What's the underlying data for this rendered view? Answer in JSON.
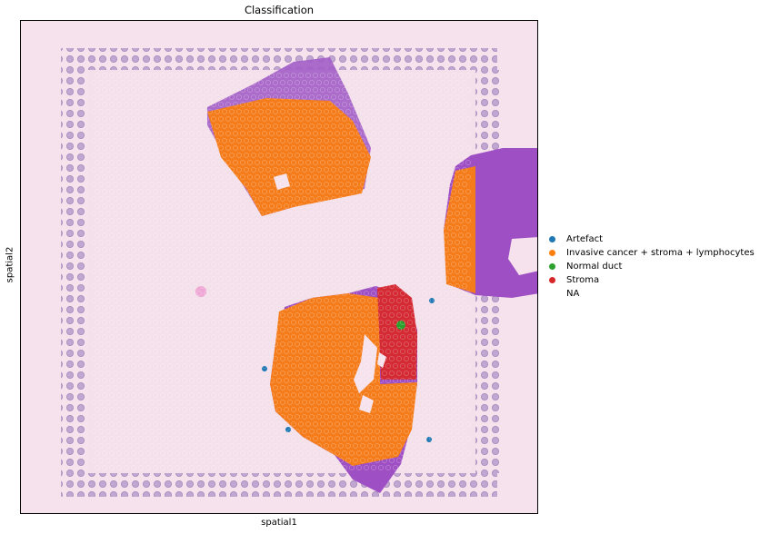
{
  "title": "Classification",
  "xlabel": "spatial1",
  "ylabel": "spatial2",
  "legend": {
    "items": [
      {
        "label": "Artefact",
        "color": "#1f77b4"
      },
      {
        "label": "Invasive cancer + stroma + lymphocytes",
        "color": "#ff7f0e"
      },
      {
        "label": "Normal duct",
        "color": "#2ca02c"
      },
      {
        "label": "Stroma",
        "color": "#d62728"
      },
      {
        "label": "NA",
        "color": "transparent"
      }
    ]
  },
  "colors": {
    "background": "#f6e2ec",
    "tissue": "#a050c0",
    "fiducial": "#b89ac8"
  }
}
